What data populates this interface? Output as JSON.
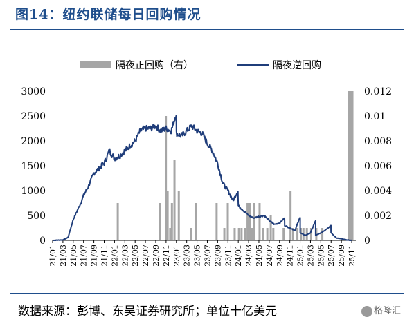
{
  "figure": {
    "title": "图14：纽约联储每日回购情况",
    "source": "数据来源：彭博、东吴证券研究所；单位十亿美元",
    "logo": "格隆汇"
  },
  "chart_data": {
    "type": "line+bar",
    "title": "",
    "legend_position": "top",
    "series": [
      {
        "name": "隔夜正回购（右）",
        "kind": "bar",
        "axis": "right",
        "color": "#a6a6a6"
      },
      {
        "name": "隔夜逆回购",
        "kind": "line",
        "axis": "left",
        "color": "#1f3d7a"
      }
    ],
    "left_axis": {
      "min": 0,
      "max": 3000,
      "ticks": [
        "0",
        "500",
        "1000",
        "1500",
        "2000",
        "2500",
        "3000"
      ]
    },
    "right_axis": {
      "min": 0,
      "max": 0.012,
      "ticks": [
        "0",
        "0.002",
        "0.004",
        "0.006",
        "0.008",
        "0.01",
        "0.012"
      ]
    },
    "x_range": [
      "2021-01",
      "2025-11"
    ],
    "x_ticks": [
      "21/01",
      "21/03",
      "21/05",
      "21/07",
      "21/09",
      "21/11",
      "22/01",
      "22/03",
      "22/05",
      "22/07",
      "22/09",
      "22/11",
      "23/01",
      "23/03",
      "23/05",
      "23/07",
      "23/09",
      "23/11",
      "24/01",
      "24/03",
      "24/05",
      "24/07",
      "24/09",
      "24/11",
      "25/01",
      "25/03",
      "25/05",
      "25/07",
      "25/09",
      "25/11"
    ],
    "reverse_repo": {
      "x": [
        "2021-01",
        "2021-02",
        "2021-03",
        "2021-04",
        "2021-05",
        "2021-06",
        "2021-06-15",
        "2021-07",
        "2021-08",
        "2021-09",
        "2021-10",
        "2021-11",
        "2021-12",
        "2022-01",
        "2022-02",
        "2022-03",
        "2022-04",
        "2022-05",
        "2022-06",
        "2022-07",
        "2022-08",
        "2022-09",
        "2022-10",
        "2022-11",
        "2022-12",
        "2022-12-30",
        "2023-01",
        "2023-02",
        "2023-03",
        "2023-04",
        "2023-05",
        "2023-06",
        "2023-07",
        "2023-08",
        "2023-09",
        "2023-10",
        "2023-11",
        "2023-12",
        "2023-12-29",
        "2024-01",
        "2024-02",
        "2024-03",
        "2024-04",
        "2024-05",
        "2024-06",
        "2024-07",
        "2024-08",
        "2024-09",
        "2024-09-30",
        "2024-10",
        "2024-11",
        "2024-12",
        "2024-12-31",
        "2025-01",
        "2025-02",
        "2025-03",
        "2025-03-31",
        "2025-04",
        "2025-05",
        "2025-06",
        "2025-06-30",
        "2025-07",
        "2025-08",
        "2025-09",
        "2025-10",
        "2025-11"
      ],
      "y": [
        0,
        5,
        10,
        60,
        420,
        650,
        750,
        900,
        1100,
        1350,
        1450,
        1550,
        1800,
        1650,
        1700,
        1800,
        1900,
        2000,
        2200,
        2250,
        2250,
        2300,
        2200,
        2250,
        2200,
        2550,
        2150,
        2100,
        2200,
        2300,
        2200,
        2150,
        1950,
        1800,
        1550,
        1150,
        1000,
        800,
        1000,
        700,
        600,
        500,
        450,
        480,
        500,
        400,
        320,
        350,
        450,
        300,
        250,
        200,
        470,
        150,
        100,
        150,
        400,
        100,
        150,
        220,
        300,
        150,
        50,
        30,
        10,
        0
      ]
    },
    "overnight_repo": {
      "x": [
        "2022-01-20",
        "2022-09-25",
        "2022-10-30",
        "2022-11-10",
        "2022-11-25",
        "2022-12-05",
        "2022-12-20",
        "2023-01-15",
        "2023-03-25",
        "2023-04-25",
        "2023-08-25",
        "2023-10-10",
        "2023-10-30",
        "2023-12-10",
        "2024-01-05",
        "2024-01-20",
        "2024-02-10",
        "2024-02-25",
        "2024-03-08",
        "2024-03-20",
        "2024-04-05",
        "2024-05-05",
        "2024-05-25",
        "2024-06-20",
        "2024-07-10",
        "2024-07-25",
        "2024-09-25",
        "2024-11-05",
        "2024-11-20",
        "2024-12-15",
        "2025-01-05",
        "2025-01-20",
        "2025-02-10",
        "2025-03-05",
        "2025-04-05",
        "2025-05-10",
        "2025-10-15",
        "2025-10-25",
        "2025-11-05"
      ],
      "y": [
        0.003,
        0.003,
        0.01,
        0.004,
        0.001,
        0.003,
        0.0065,
        0.004,
        0.001,
        0.003,
        0.003,
        0.001,
        0.003,
        0.001,
        0.001,
        0.001,
        0.001,
        0.003,
        0.003,
        0.001,
        0.003,
        0.003,
        0.001,
        0.001,
        0.002,
        0.001,
        0.001,
        0.004,
        0.001,
        0.001,
        0.001,
        0.001,
        0.001,
        0.001,
        0.001,
        0.001,
        0.012,
        0.012,
        0.012
      ]
    }
  }
}
